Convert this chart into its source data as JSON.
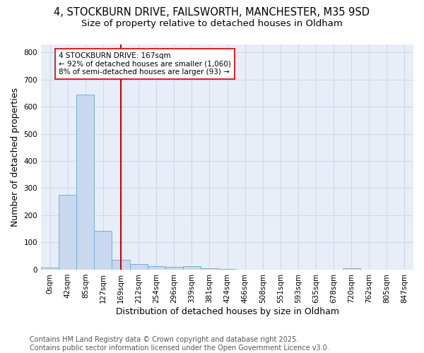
{
  "title1": "4, STOCKBURN DRIVE, FAILSWORTH, MANCHESTER, M35 9SD",
  "title2": "Size of property relative to detached houses in Oldham",
  "xlabel": "Distribution of detached houses by size in Oldham",
  "ylabel": "Number of detached properties",
  "bar_labels": [
    "0sqm",
    "42sqm",
    "85sqm",
    "127sqm",
    "169sqm",
    "212sqm",
    "254sqm",
    "296sqm",
    "339sqm",
    "381sqm",
    "424sqm",
    "466sqm",
    "508sqm",
    "551sqm",
    "593sqm",
    "635sqm",
    "678sqm",
    "720sqm",
    "762sqm",
    "805sqm",
    "847sqm"
  ],
  "bar_values": [
    8,
    275,
    645,
    143,
    37,
    20,
    13,
    11,
    12,
    5,
    2,
    0,
    0,
    0,
    0,
    0,
    0,
    5,
    0,
    0,
    0
  ],
  "bar_color": "#c8d8ef",
  "bar_edge_color": "#7aadd4",
  "plot_bg_color": "#e8eef8",
  "fig_bg_color": "#ffffff",
  "grid_color": "#d0d8e8",
  "vline_x": 4,
  "vline_color": "#cc0000",
  "annotation_text": "4 STOCKBURN DRIVE: 167sqm\n← 92% of detached houses are smaller (1,060)\n8% of semi-detached houses are larger (93) →",
  "annotation_box_facecolor": "#ffffff",
  "annotation_box_edgecolor": "#cc0000",
  "ylim": [
    0,
    830
  ],
  "yticks": [
    0,
    100,
    200,
    300,
    400,
    500,
    600,
    700,
    800
  ],
  "footer": "Contains HM Land Registry data © Crown copyright and database right 2025.\nContains public sector information licensed under the Open Government Licence v3.0.",
  "title1_fontsize": 10.5,
  "title2_fontsize": 9.5,
  "axis_label_fontsize": 9,
  "tick_fontsize": 7.5,
  "annotation_fontsize": 7.5,
  "footer_fontsize": 7
}
